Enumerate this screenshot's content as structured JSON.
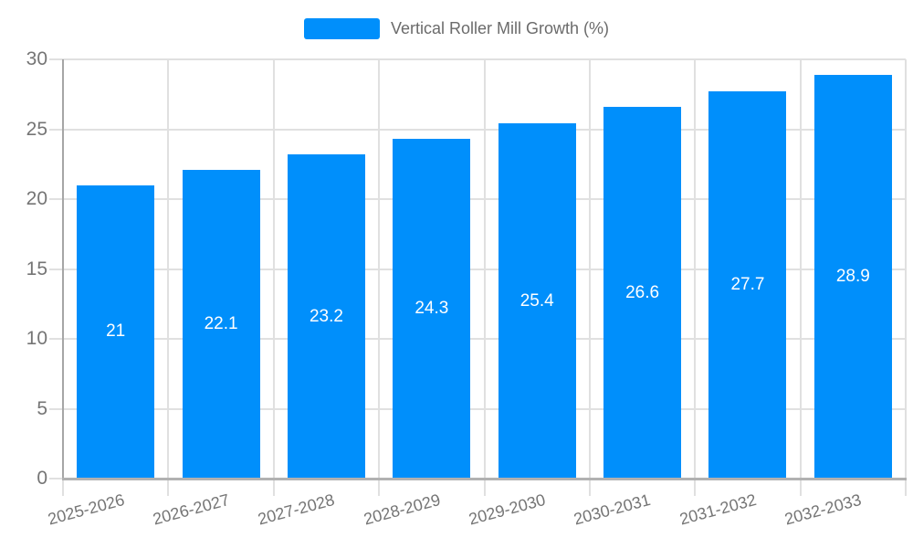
{
  "chart_data": {
    "type": "bar",
    "title": "",
    "categories": [
      "2025-2026",
      "2026-2027",
      "2027-2028",
      "2028-2029",
      "2029-2030",
      "2030-2031",
      "2031-2032",
      "2032-2033"
    ],
    "series": [
      {
        "name": "Vertical Roller Mill Growth (%)",
        "values": [
          21,
          22.1,
          23.2,
          24.3,
          25.4,
          26.6,
          27.7,
          28.9
        ],
        "value_labels": [
          "21",
          "22.1",
          "23.2",
          "24.3",
          "25.4",
          "26.6",
          "27.7",
          "28.9"
        ],
        "color": "#008FFB"
      }
    ],
    "xlabel": "",
    "ylabel": "",
    "ylim": [
      0,
      30
    ],
    "yticks": [
      0,
      5,
      10,
      15,
      20,
      25,
      30
    ],
    "ytick_labels": [
      "0",
      "5",
      "10",
      "15",
      "20",
      "25",
      "30"
    ],
    "grid": true,
    "legend_position": "top-center",
    "x_label_rotation_deg": -15,
    "colors": {
      "bar": "#008FFB",
      "grid": "#e0e0e0",
      "x_axis_line": "#b1b1b1",
      "y_axis_line": "#a6a6a6",
      "axis_text": "#757575",
      "legend_text": "#6b6b6b",
      "value_label_text": "#ffffff",
      "background": "#ffffff"
    }
  }
}
